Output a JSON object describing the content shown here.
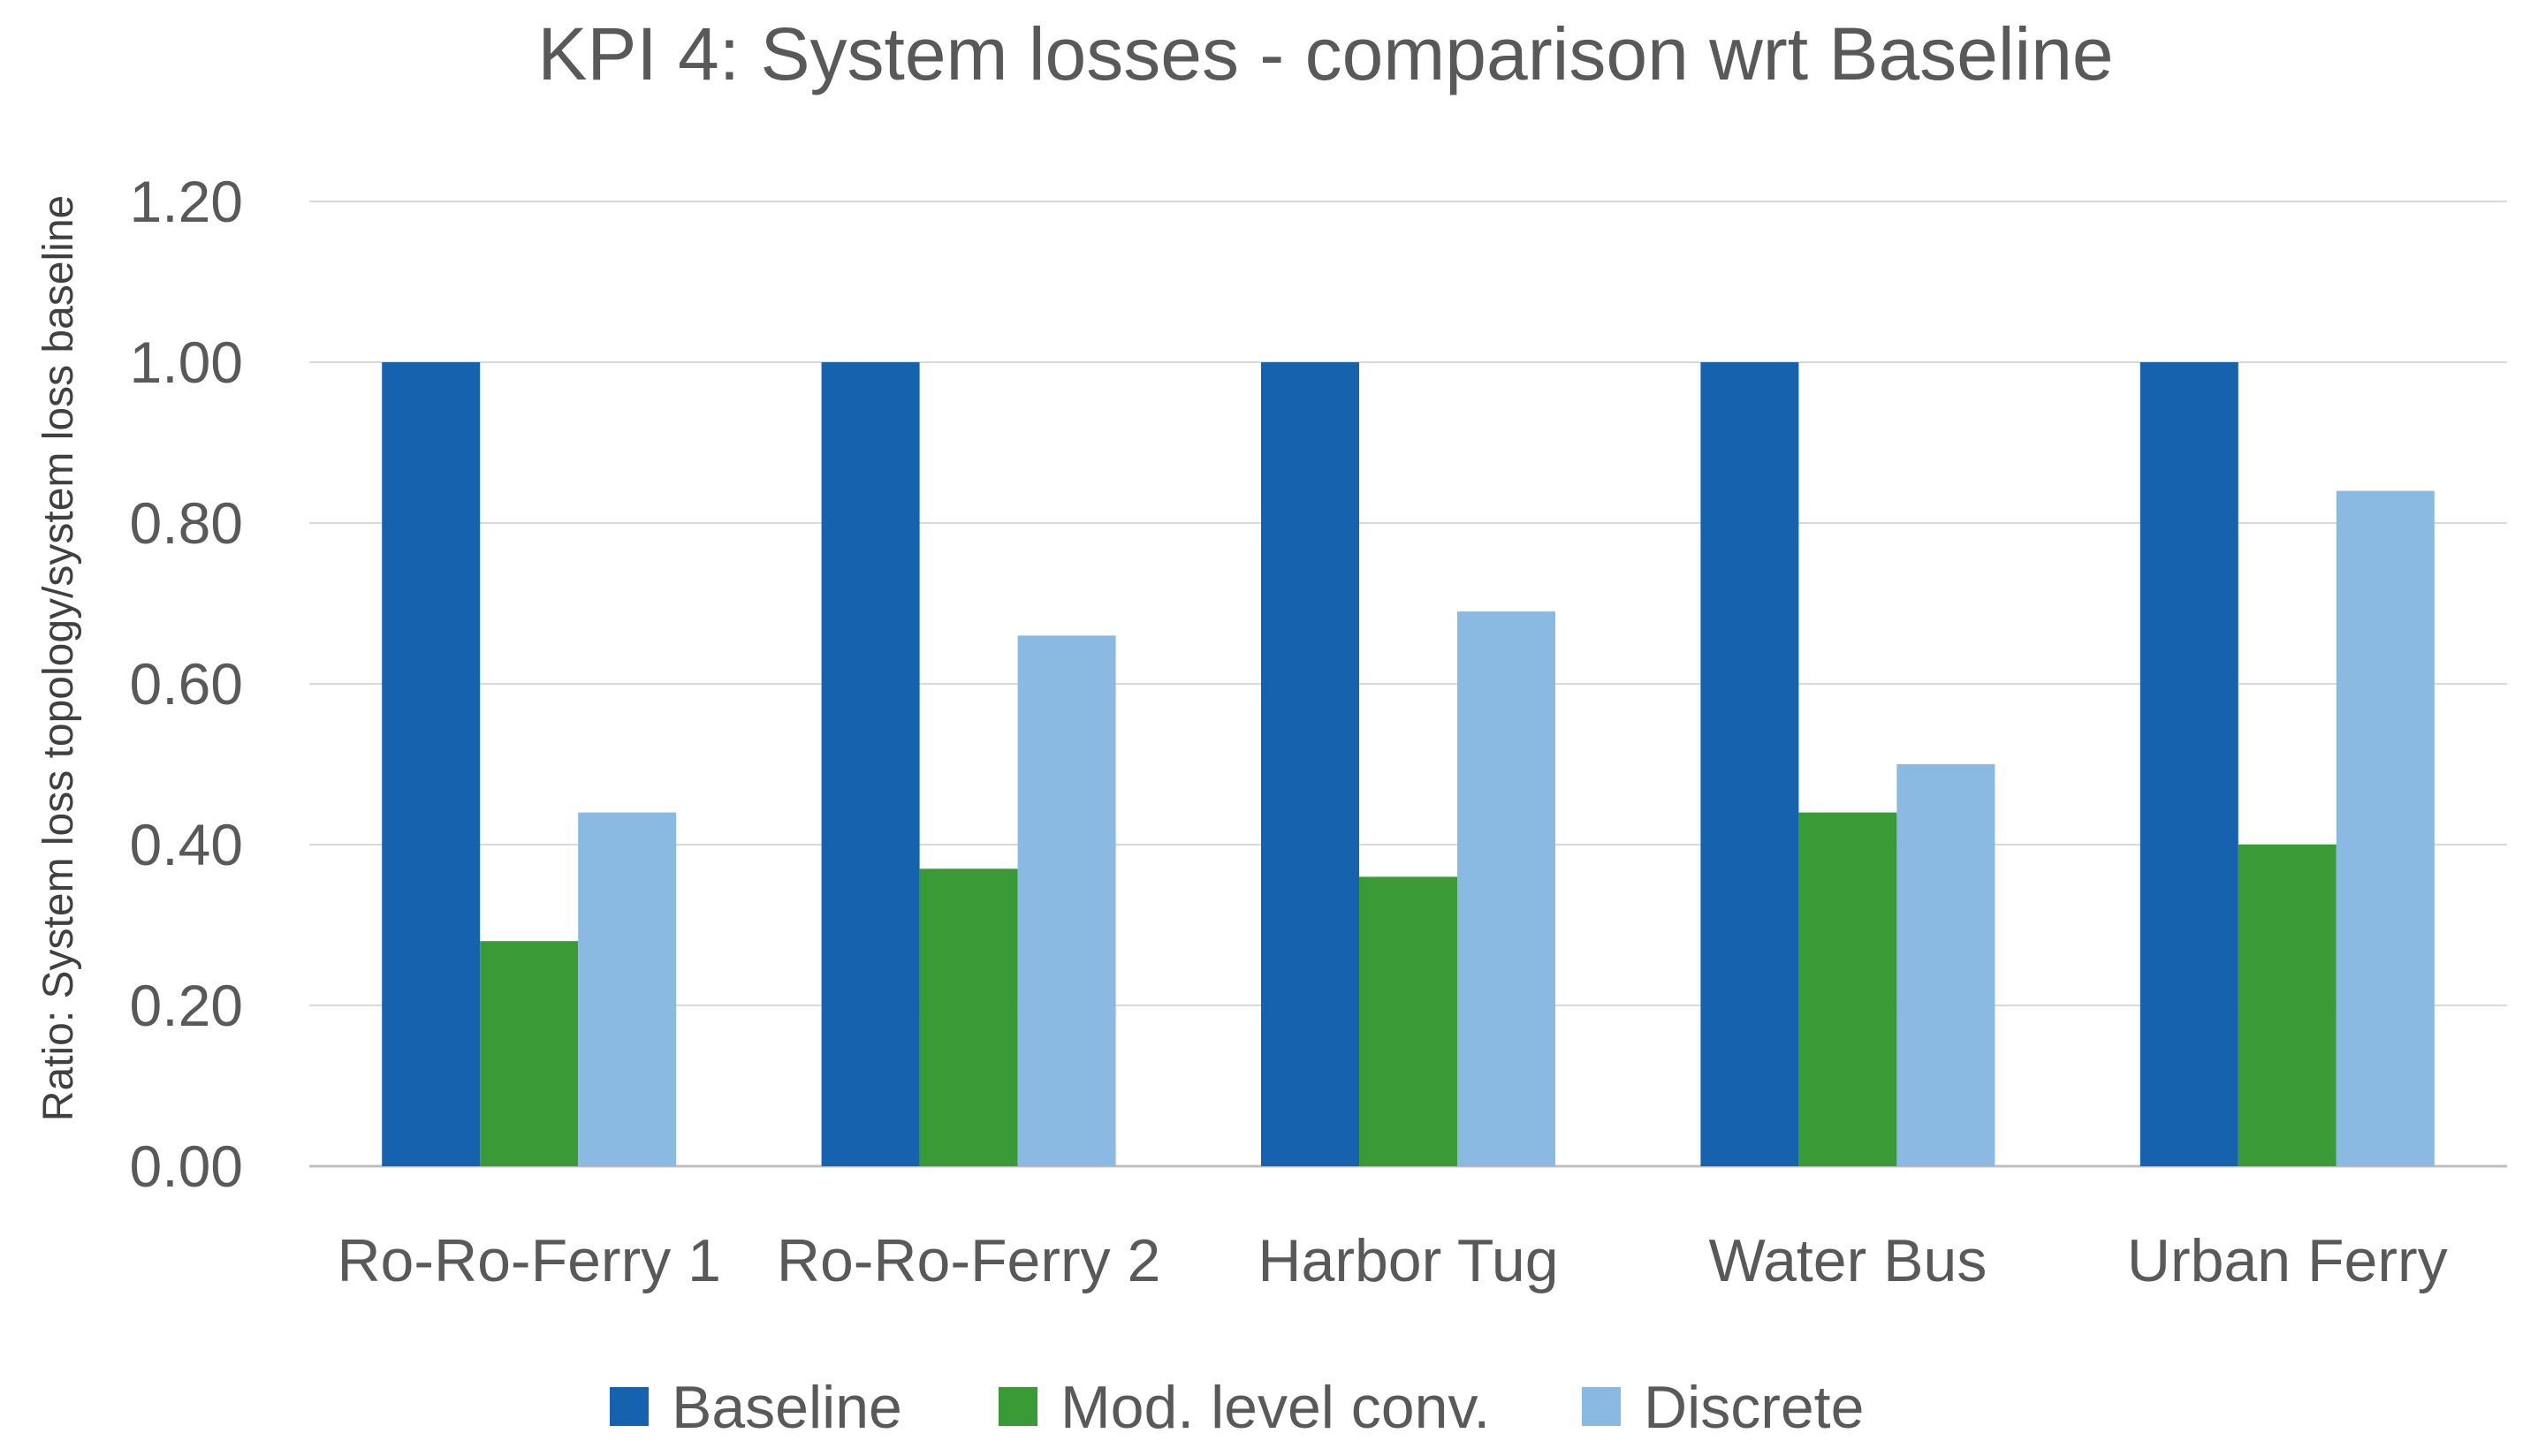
{
  "chart_data": {
    "type": "bar",
    "title": "KPI 4: System losses - comparison wrt Baseline",
    "xlabel": "",
    "ylabel": "Ratio: System loss topology/system loss baseline",
    "ylim": [
      0,
      1.2
    ],
    "yticks": [
      "0.00",
      "0.20",
      "0.40",
      "0.60",
      "0.80",
      "1.00",
      "1.20"
    ],
    "grid": true,
    "legend_position": "bottom",
    "categories": [
      "Ro-Ro-Ferry 1",
      "Ro-Ro-Ferry 2",
      "Harbor Tug",
      "Water Bus",
      "Urban Ferry"
    ],
    "series": [
      {
        "name": "Baseline",
        "color": "#1762AE",
        "values": [
          1.0,
          1.0,
          1.0,
          1.0,
          1.0
        ]
      },
      {
        "name": "Mod. level conv.",
        "color": "#3A9A35",
        "values": [
          0.28,
          0.37,
          0.36,
          0.44,
          0.4
        ]
      },
      {
        "name": "Discrete",
        "color": "#8AB9E1",
        "values": [
          0.44,
          0.66,
          0.69,
          0.5,
          0.84
        ]
      }
    ]
  }
}
